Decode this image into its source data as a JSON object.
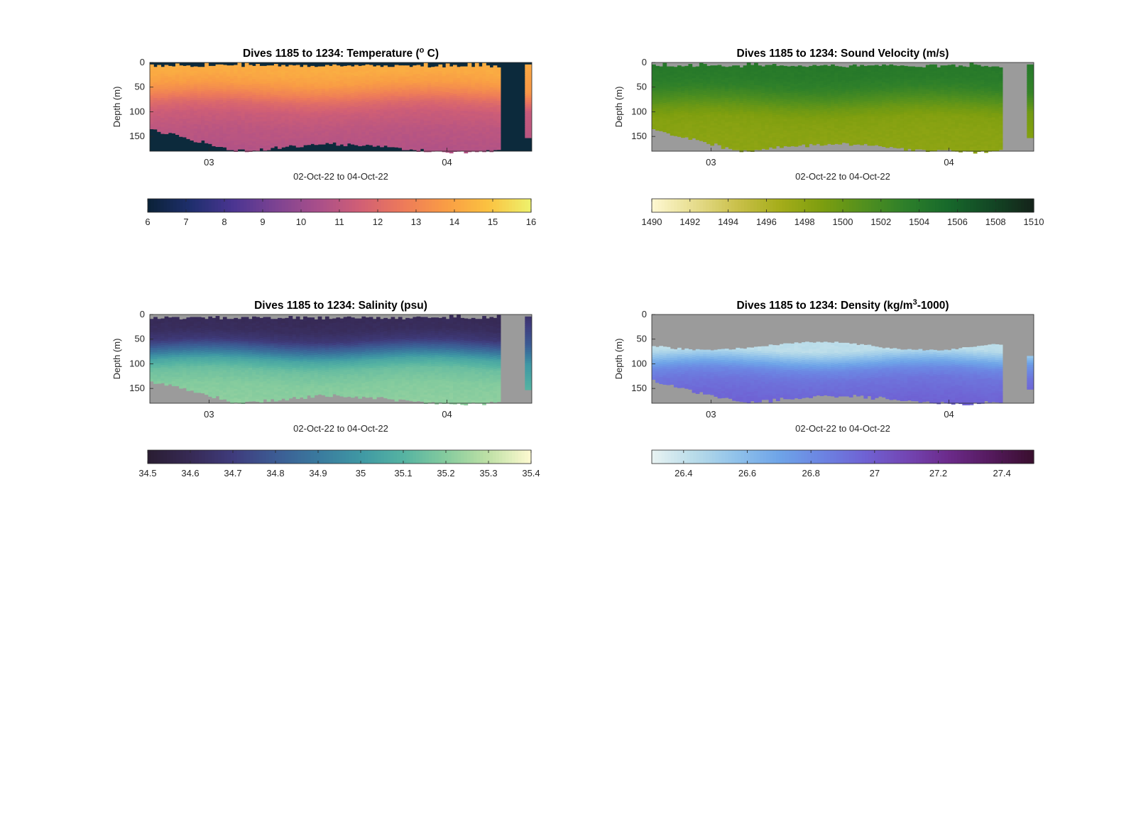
{
  "chart_data": [
    {
      "type": "heatmap",
      "title": "Dives 1185 to 1234: Temperature (° C)",
      "title_parts": [
        "Dives 1185 to 1234: Temperature (",
        "o",
        " C)"
      ],
      "ylabel": "Depth (m)",
      "xlabel": "02-Oct-22 to 04-Oct-22",
      "x_ticks": [
        "03",
        "04"
      ],
      "y_ticks": [
        "0",
        "50",
        "100",
        "150"
      ],
      "ylim": [
        0,
        180
      ],
      "y_reversed": true,
      "missing_color": "#0c2a3c",
      "colormap": [
        "#0b2239",
        "#1f2f6e",
        "#4b3592",
        "#7d4392",
        "#a94f8a",
        "#d15f75",
        "#ed7a5a",
        "#f99c45",
        "#fbc140",
        "#eef06b"
      ],
      "clim": [
        6,
        16
      ],
      "colorbar_ticks": [
        "6",
        "7",
        "8",
        "9",
        "10",
        "11",
        "12",
        "13",
        "14",
        "15",
        "16"
      ],
      "profile": [
        [
          0,
          14.3
        ],
        [
          20,
          14.2
        ],
        [
          40,
          13.8
        ],
        [
          60,
          13.0
        ],
        [
          80,
          12.0
        ],
        [
          100,
          11.4
        ],
        [
          130,
          11.0
        ],
        [
          160,
          10.8
        ],
        [
          180,
          10.7
        ]
      ],
      "right_segment_profile": [
        [
          0,
          14.2
        ],
        [
          60,
          13.6
        ],
        [
          100,
          11.2
        ],
        [
          150,
          10.9
        ]
      ]
    },
    {
      "type": "heatmap",
      "title": "Dives 1185 to 1234: Sound Velocity (m/s)",
      "title_parts": [
        "Dives 1185 to 1234: Sound Velocity (m/s)",
        "",
        ""
      ],
      "ylabel": "Depth (m)",
      "xlabel": "02-Oct-22 to 04-Oct-22",
      "x_ticks": [
        "03",
        "04"
      ],
      "y_ticks": [
        "0",
        "50",
        "100",
        "150"
      ],
      "ylim": [
        0,
        180
      ],
      "y_reversed": true,
      "missing_color": "#9b9b9b",
      "colormap": [
        "#fdf7d0",
        "#e6dc8c",
        "#c9c04a",
        "#a5ad1a",
        "#7d9e0f",
        "#52901e",
        "#2d7f2a",
        "#17692b",
        "#134825",
        "#14241a"
      ],
      "clim": [
        1490,
        1510
      ],
      "colorbar_ticks": [
        "1490",
        "1492",
        "1494",
        "1496",
        "1498",
        "1500",
        "1502",
        "1504",
        "1506",
        "1508",
        "1510"
      ],
      "profile": [
        [
          0,
          1504.0
        ],
        [
          30,
          1503.7
        ],
        [
          50,
          1503.0
        ],
        [
          70,
          1501.5
        ],
        [
          90,
          1499.8
        ],
        [
          110,
          1498.6
        ],
        [
          140,
          1498.2
        ],
        [
          180,
          1498.0
        ]
      ],
      "right_segment_profile": [
        [
          0,
          1504.0
        ],
        [
          60,
          1502.8
        ],
        [
          100,
          1499.5
        ],
        [
          150,
          1498.5
        ]
      ]
    },
    {
      "type": "heatmap",
      "title": "Dives 1185 to 1234: Salinity (psu)",
      "title_parts": [
        "Dives 1185 to 1234: Salinity (psu)",
        "",
        ""
      ],
      "ylabel": "Depth (m)",
      "xlabel": "02-Oct-22 to 04-Oct-22",
      "x_ticks": [
        "03",
        "04"
      ],
      "y_ticks": [
        "0",
        "50",
        "100",
        "150"
      ],
      "ylim": [
        0,
        180
      ],
      "y_reversed": true,
      "missing_color": "#9b9b9b",
      "colormap": [
        "#2a1d33",
        "#372a56",
        "#3f3c7d",
        "#3c5c94",
        "#3a7a9e",
        "#3f98a4",
        "#55b3a2",
        "#84cb9e",
        "#bde0a5",
        "#fcf9cf"
      ],
      "clim": [
        34.5,
        35.4
      ],
      "colorbar_ticks": [
        "34.5",
        "34.6",
        "34.7",
        "34.8",
        "34.9",
        "35",
        "35.1",
        "35.2",
        "35.3",
        "35.4"
      ],
      "profile": [
        [
          0,
          34.6
        ],
        [
          30,
          34.62
        ],
        [
          50,
          34.68
        ],
        [
          70,
          34.85
        ],
        [
          90,
          35.05
        ],
        [
          110,
          35.15
        ],
        [
          140,
          35.2
        ],
        [
          180,
          35.22
        ]
      ],
      "right_segment_profile": [
        [
          0,
          34.65
        ],
        [
          60,
          34.8
        ],
        [
          100,
          35.0
        ],
        [
          150,
          35.1
        ]
      ]
    },
    {
      "type": "heatmap",
      "title": "Dives 1185 to 1234: Density (kg/m3-1000)",
      "title_parts": [
        "Dives 1185 to 1234: Density (kg/m",
        "3",
        "-1000)"
      ],
      "ylabel": "Depth (m)",
      "xlabel": "02-Oct-22 to 04-Oct-22",
      "x_ticks": [
        "03",
        "04"
      ],
      "y_ticks": [
        "0",
        "50",
        "100",
        "150"
      ],
      "ylim": [
        0,
        180
      ],
      "y_reversed": true,
      "missing_color": "#9b9b9b",
      "colormap": [
        "#e7f2f2",
        "#b7dbe9",
        "#8fc1ea",
        "#6ea4e8",
        "#6c84e2",
        "#6f63d4",
        "#7346b4",
        "#6c2b8b",
        "#551a5e",
        "#3a0f2f"
      ],
      "clim": [
        26.3,
        27.5
      ],
      "colorbar_ticks": [
        "26.4",
        "26.6",
        "26.8",
        "27",
        "27.2",
        "27.4"
      ],
      "profile": [
        [
          70,
          26.42
        ],
        [
          80,
          26.52
        ],
        [
          95,
          26.68
        ],
        [
          110,
          26.82
        ],
        [
          130,
          26.9
        ],
        [
          160,
          26.95
        ],
        [
          180,
          26.97
        ]
      ],
      "right_segment_profile": [
        [
          80,
          26.5
        ],
        [
          100,
          26.75
        ],
        [
          130,
          26.9
        ],
        [
          150,
          26.95
        ]
      ]
    }
  ]
}
